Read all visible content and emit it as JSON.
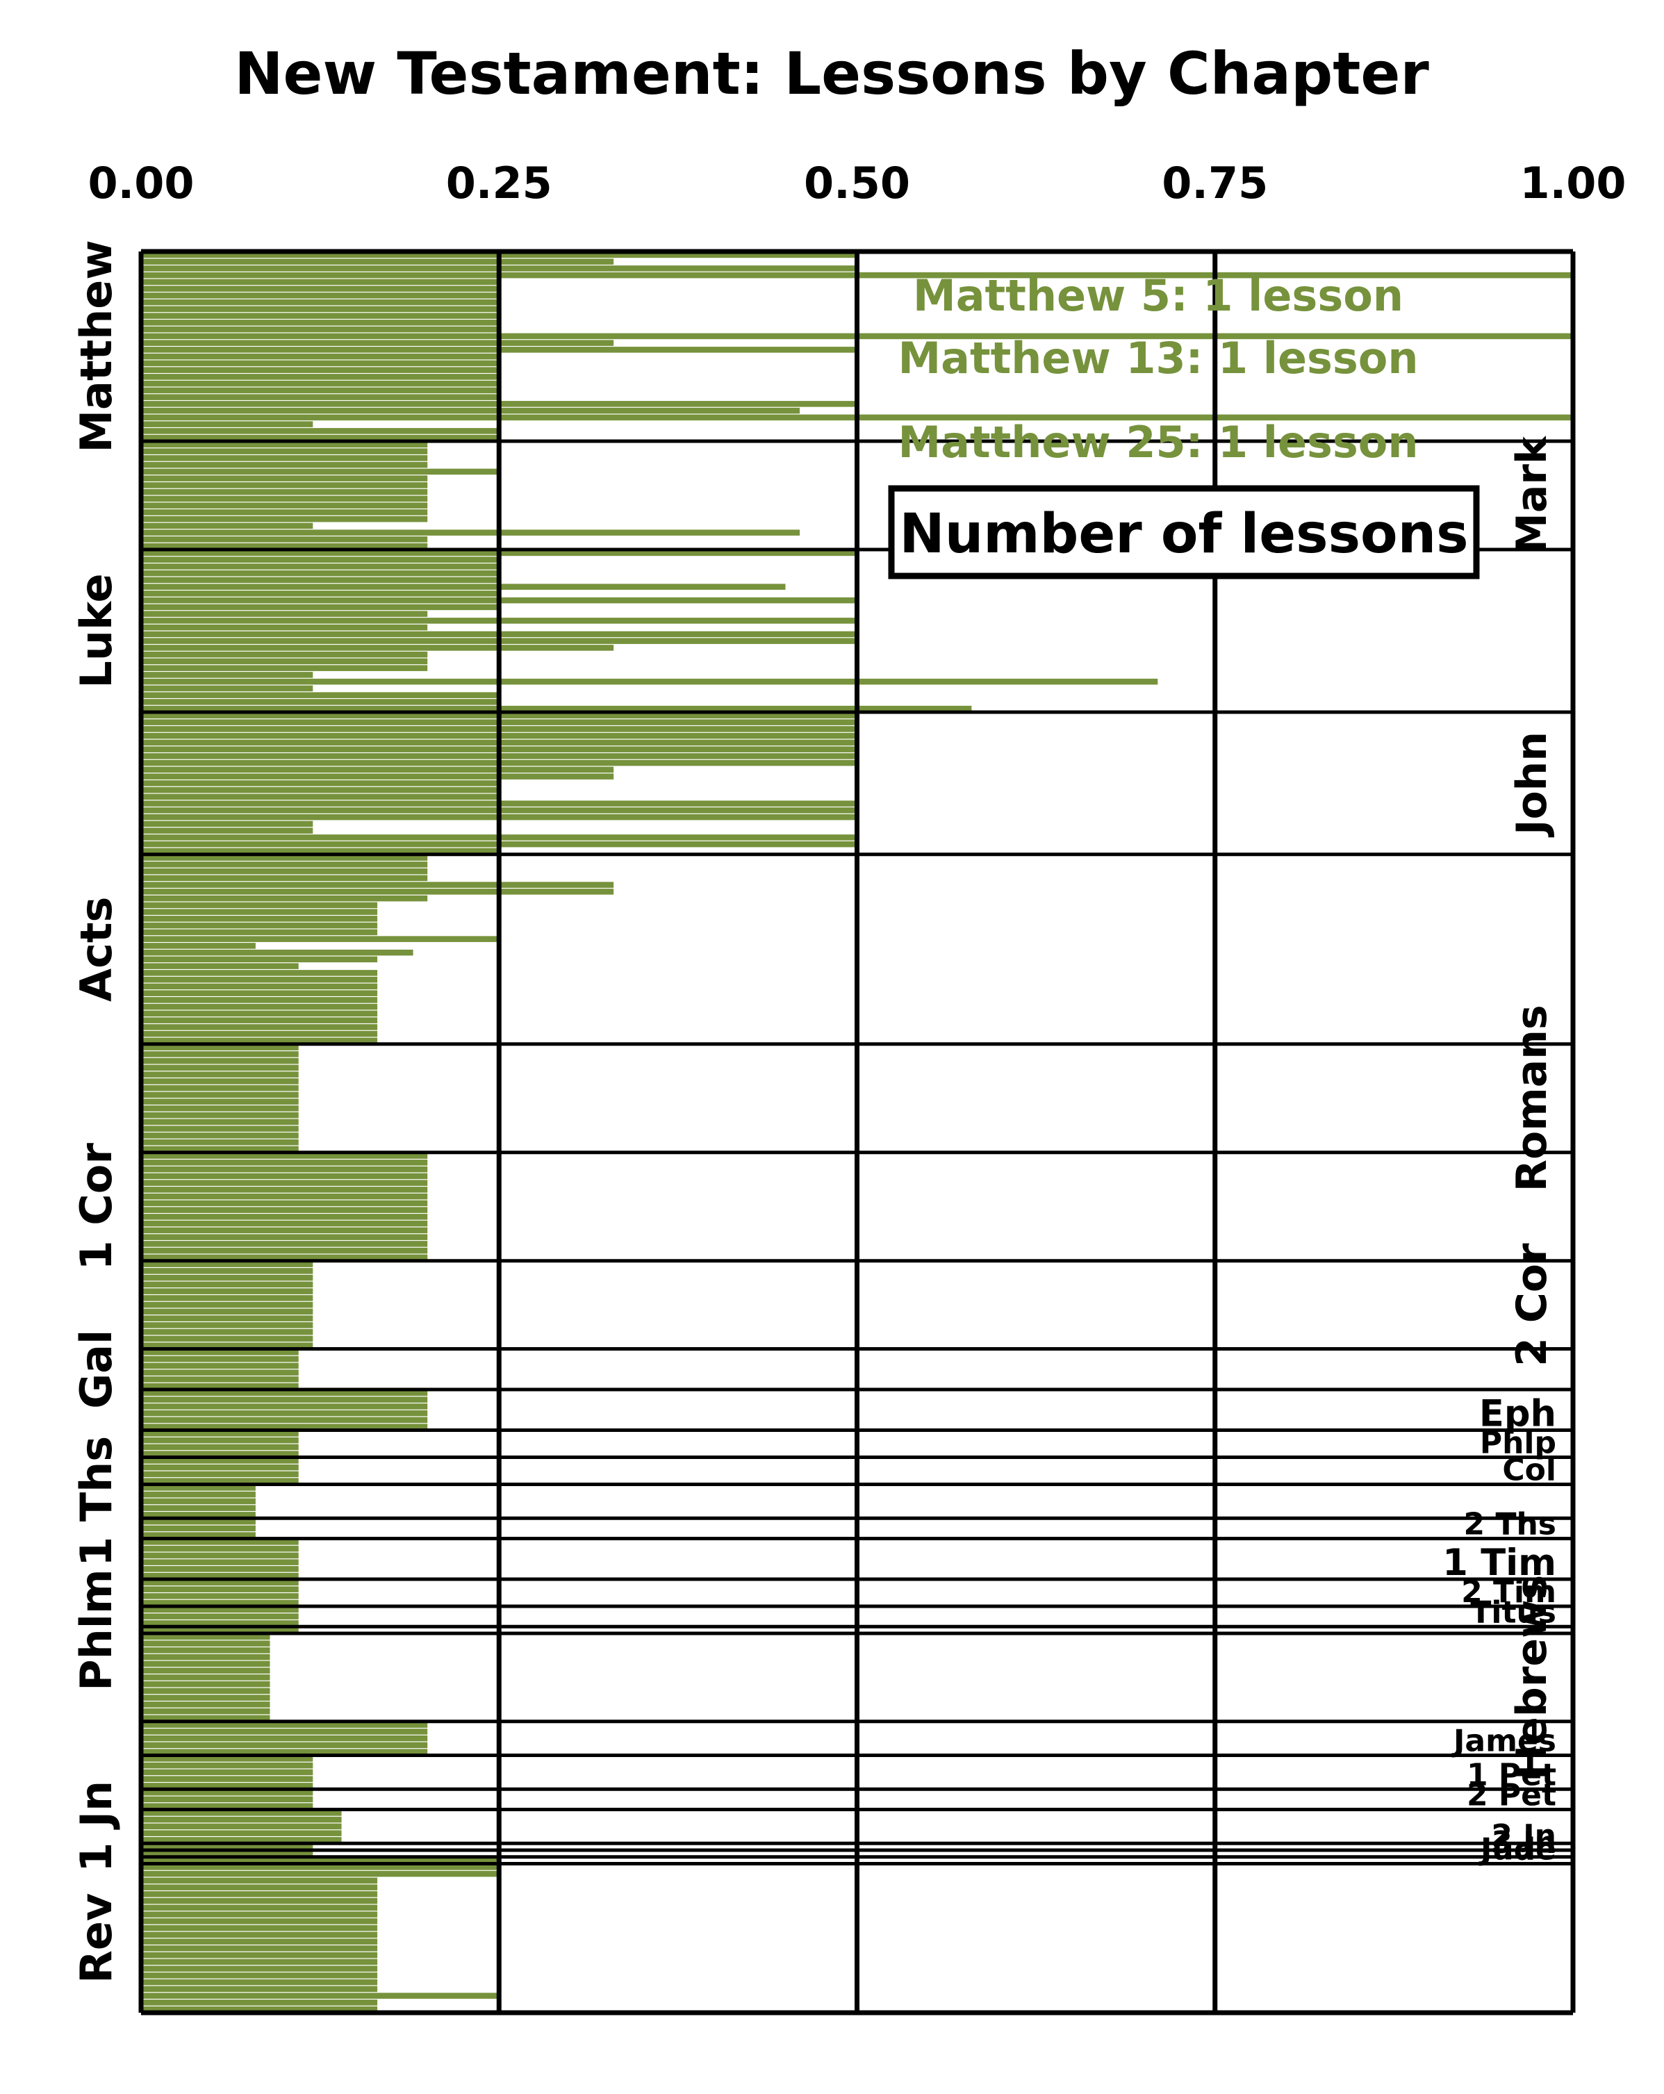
{
  "chart_data": {
    "type": "bar",
    "orientation": "horizontal",
    "title": "New Testament: Lessons by Chapter",
    "xlim": [
      0,
      1
    ],
    "x_ticks": [
      "0.00",
      "0.25",
      "0.50",
      "0.75",
      "1.00"
    ],
    "grid": true,
    "bar_color": "#76923c",
    "series_label": "Number of lessons",
    "annotations": [
      {
        "text": "Matthew 5: 1 lesson",
        "book": "Matthew",
        "chapter": 5
      },
      {
        "text": "Matthew 13: 1 lesson",
        "book": "Matthew",
        "chapter": 13
      },
      {
        "text": "Matthew 25: 1 lesson",
        "book": "Matthew",
        "chapter": 25
      }
    ],
    "books": [
      {
        "name": "Matthew",
        "label_side": "left",
        "values": [
          0.5,
          0.33,
          0.5,
          1.0,
          0.25,
          0.25,
          0.25,
          0.25,
          0.25,
          0.25,
          0.25,
          0.25,
          1.0,
          0.33,
          0.5,
          0.25,
          0.25,
          0.25,
          0.25,
          0.25,
          0.25,
          0.25,
          0.5,
          0.46,
          1.0,
          0.12,
          0.25,
          0.25
        ]
      },
      {
        "name": "Mark",
        "label_side": "right",
        "values": [
          0.2,
          0.2,
          0.2,
          0.2,
          0.25,
          0.2,
          0.2,
          0.2,
          0.2,
          0.2,
          0.2,
          0.2,
          0.12,
          0.46,
          0.2,
          0.2
        ]
      },
      {
        "name": "Luke",
        "label_side": "left",
        "values": [
          0.5,
          0.25,
          0.25,
          0.25,
          0.25,
          0.45,
          0.25,
          0.5,
          0.25,
          0.2,
          0.5,
          0.2,
          0.5,
          0.5,
          0.33,
          0.2,
          0.2,
          0.2,
          0.12,
          0.71,
          0.12,
          0.25,
          0.25,
          0.58
        ]
      },
      {
        "name": "John",
        "label_side": "right",
        "values": [
          0.5,
          0.5,
          0.5,
          0.5,
          0.5,
          0.5,
          0.5,
          0.5,
          0.33,
          0.33,
          0.25,
          0.25,
          0.25,
          0.5,
          0.5,
          0.5,
          0.12,
          0.12,
          0.5,
          0.5,
          0.25
        ]
      },
      {
        "name": "Acts",
        "label_side": "left",
        "values": [
          0.2,
          0.2,
          0.2,
          0.2,
          0.33,
          0.33,
          0.2,
          0.165,
          0.165,
          0.165,
          0.165,
          0.165,
          0.25,
          0.08,
          0.19,
          0.165,
          0.11,
          0.165,
          0.165,
          0.165,
          0.165,
          0.165,
          0.165,
          0.165,
          0.165,
          0.165,
          0.165,
          0.165
        ]
      },
      {
        "name": "Romans",
        "label_side": "right",
        "values": [
          0.11,
          0.11,
          0.11,
          0.11,
          0.11,
          0.11,
          0.11,
          0.11,
          0.11,
          0.11,
          0.11,
          0.11,
          0.11,
          0.11,
          0.11,
          0.11
        ]
      },
      {
        "name": "1 Cor",
        "label_side": "left",
        "values": [
          0.2,
          0.2,
          0.2,
          0.2,
          0.2,
          0.2,
          0.2,
          0.2,
          0.2,
          0.2,
          0.2,
          0.2,
          0.2,
          0.2,
          0.2,
          0.2
        ]
      },
      {
        "name": "2 Cor",
        "label_side": "right",
        "values": [
          0.12,
          0.12,
          0.12,
          0.12,
          0.12,
          0.12,
          0.12,
          0.12,
          0.12,
          0.12,
          0.12,
          0.12,
          0.12
        ]
      },
      {
        "name": "Gal",
        "label_side": "left",
        "values": [
          0.11,
          0.11,
          0.11,
          0.11,
          0.11,
          0.11
        ]
      },
      {
        "name": "Eph",
        "label_side": "right",
        "values": [
          0.2,
          0.2,
          0.2,
          0.2,
          0.2,
          0.2
        ]
      },
      {
        "name": "Phlp",
        "label_side": "right",
        "values": [
          0.11,
          0.11,
          0.11,
          0.11
        ]
      },
      {
        "name": "Col",
        "label_side": "right",
        "values": [
          0.11,
          0.11,
          0.11,
          0.11
        ]
      },
      {
        "name": "1 Ths",
        "label_side": "left",
        "values": [
          0.08,
          0.08,
          0.08,
          0.08,
          0.08
        ]
      },
      {
        "name": "2 Ths",
        "label_side": "right",
        "values": [
          0.08,
          0.08,
          0.08
        ]
      },
      {
        "name": "1 Tim",
        "label_side": "right",
        "values": [
          0.11,
          0.11,
          0.11,
          0.11,
          0.11,
          0.11
        ]
      },
      {
        "name": "2 Tim",
        "label_side": "right",
        "values": [
          0.11,
          0.11,
          0.11,
          0.11
        ]
      },
      {
        "name": "Titus",
        "label_side": "right",
        "values": [
          0.11,
          0.11,
          0.11
        ]
      },
      {
        "name": "Phlm",
        "label_side": "left",
        "values": [
          0.11
        ]
      },
      {
        "name": "Hebrews",
        "label_side": "right",
        "values": [
          0.09,
          0.09,
          0.09,
          0.09,
          0.09,
          0.09,
          0.09,
          0.09,
          0.09,
          0.09,
          0.09,
          0.09,
          0.09
        ]
      },
      {
        "name": "James",
        "label_side": "right",
        "values": [
          0.2,
          0.2,
          0.2,
          0.2,
          0.2
        ]
      },
      {
        "name": "1 Pet",
        "label_side": "right",
        "values": [
          0.12,
          0.12,
          0.12,
          0.12,
          0.12
        ]
      },
      {
        "name": "2 Pet",
        "label_side": "right",
        "values": [
          0.12,
          0.12,
          0.12
        ]
      },
      {
        "name": "1 Jn",
        "label_side": "left",
        "values": [
          0.14,
          0.14,
          0.14,
          0.14,
          0.14
        ]
      },
      {
        "name": "2 Jn",
        "label_side": "right",
        "values": [
          0.12
        ]
      },
      {
        "name": "3 Jn",
        "label_side": "right",
        "values": [
          0.12
        ]
      },
      {
        "name": "Jude",
        "label_side": "right",
        "values": [
          0.25
        ]
      },
      {
        "name": "Rev",
        "label_side": "left",
        "values": [
          0.25,
          0.25,
          0.165,
          0.165,
          0.165,
          0.165,
          0.165,
          0.165,
          0.165,
          0.165,
          0.165,
          0.165,
          0.165,
          0.165,
          0.165,
          0.165,
          0.165,
          0.165,
          0.165,
          0.25,
          0.165,
          0.165
        ]
      }
    ]
  }
}
